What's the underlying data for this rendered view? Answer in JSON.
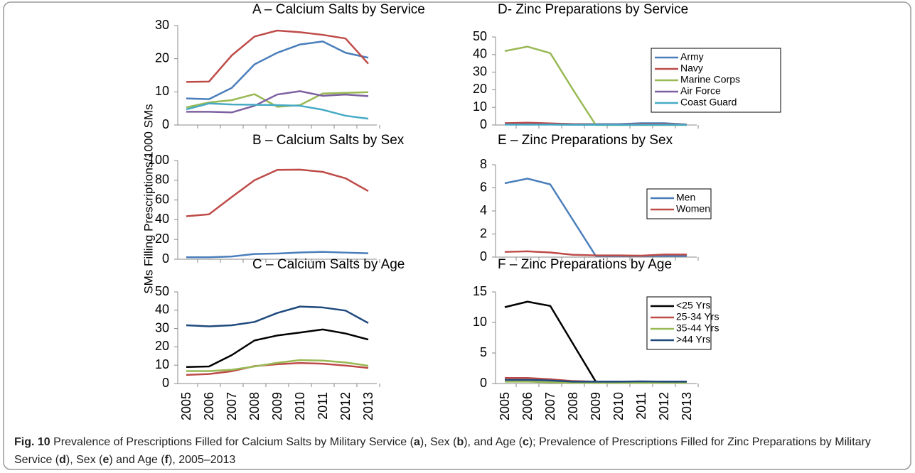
{
  "y_label": "SMs Filling Prescriptions/1000 SMs",
  "caption": [
    {
      "text": "Fig. 10",
      "bold": true
    },
    {
      "text": " Prevalence of Prescriptions Filled for Calcium Salts by Military Service (",
      "bold": false
    },
    {
      "text": "a",
      "bold": true
    },
    {
      "text": "), Sex (",
      "bold": false
    },
    {
      "text": "b",
      "bold": true
    },
    {
      "text": "), and Age (",
      "bold": false
    },
    {
      "text": "c",
      "bold": true
    },
    {
      "text": "); Prevalence of Prescriptions Filled for Zinc Preparations by Military Service (",
      "bold": false
    },
    {
      "text": "d",
      "bold": true
    },
    {
      "text": "), Sex (",
      "bold": false
    },
    {
      "text": "e",
      "bold": true
    },
    {
      "text": ") and Age (",
      "bold": false
    },
    {
      "text": "f",
      "bold": true
    },
    {
      "text": "), 2005–2013",
      "bold": false
    }
  ],
  "chart_data": [
    {
      "type": "line",
      "title": "A – Calcium Salts by Service",
      "ylim": [
        0,
        30
      ],
      "yticks": [
        0,
        10,
        20,
        30
      ],
      "series": [
        {
          "color": "#4a7ebb",
          "values": [
            8,
            7.8,
            11.2,
            18.3,
            21.8,
            24.3,
            25.2,
            21.8,
            20.3
          ]
        },
        {
          "color": "#be4b48",
          "values": [
            13,
            13.1,
            21,
            26.7,
            28.5,
            28,
            27.2,
            26.1,
            18.5
          ]
        },
        {
          "color": "#98b954",
          "values": [
            5.3,
            6.8,
            7.5,
            9.3,
            5.5,
            6,
            9.5,
            9.7,
            9.9
          ]
        },
        {
          "color": "#7d60a0",
          "values": [
            4,
            4,
            3.8,
            5.8,
            9.2,
            10.2,
            8.8,
            9.2,
            8.7
          ]
        },
        {
          "color": "#46aac5",
          "values": [
            4.7,
            6.5,
            6.2,
            6.1,
            6,
            5.8,
            4.6,
            2.8,
            1.9
          ]
        }
      ]
    },
    {
      "type": "line",
      "title": "B – Calcium Salts by Sex",
      "ylim": [
        0,
        100
      ],
      "yticks": [
        0,
        20,
        40,
        60,
        80,
        100
      ],
      "series": [
        {
          "color": "#4a7ebb",
          "values": [
            2,
            2,
            2.8,
            5.3,
            5.8,
            6.8,
            7.5,
            6.7,
            6
          ]
        },
        {
          "color": "#be4b48",
          "values": [
            43.5,
            45.5,
            63,
            80,
            90.5,
            90.7,
            88.5,
            82,
            69
          ]
        }
      ]
    },
    {
      "type": "line",
      "title": "C – Calcium Salts by Age",
      "ylim": [
        0,
        50
      ],
      "yticks": [
        0,
        10,
        20,
        30,
        40,
        50
      ],
      "categories": [
        "2005",
        "2006",
        "2007",
        "2008",
        "2009",
        "2010",
        "2011",
        "2012",
        "2013"
      ],
      "series": [
        {
          "color": "#000000",
          "values": [
            9,
            9.3,
            15.5,
            23.5,
            26.2,
            27.8,
            29.5,
            27.3,
            24
          ]
        },
        {
          "color": "#be4b48",
          "values": [
            4.7,
            5.2,
            6.7,
            9.5,
            10.5,
            11.2,
            10.8,
            9.8,
            8.5
          ]
        },
        {
          "color": "#98b954",
          "values": [
            6.8,
            6.8,
            7.5,
            9.3,
            11.3,
            12.8,
            12.5,
            11.5,
            9.7
          ]
        },
        {
          "color": "#1f497d",
          "values": [
            31.8,
            31.2,
            31.8,
            33.6,
            38.5,
            42,
            41.5,
            39.8,
            33
          ]
        }
      ]
    },
    {
      "type": "line",
      "title": "D- Zinc  Preparations by Service",
      "ylim": [
        0,
        50
      ],
      "yticks": [
        0,
        10,
        20,
        30,
        40,
        50
      ],
      "legend": "upper right",
      "series": [
        {
          "name": "Army",
          "color": "#4a7ebb",
          "values": [
            1,
            1,
            0.7,
            0.5,
            0.5,
            0.5,
            1,
            1,
            0.3
          ]
        },
        {
          "name": "Navy",
          "color": "#be4b48",
          "values": [
            1,
            1.3,
            0.9,
            0.5,
            0.3,
            0.3,
            0.5,
            0.5,
            0.3
          ]
        },
        {
          "name": "Marine Corps",
          "color": "#98b954",
          "values": [
            42,
            44.5,
            40.8,
            20,
            0,
            0,
            0,
            0,
            0
          ]
        },
        {
          "name": "Air Force",
          "color": "#7d60a0",
          "values": [
            0.3,
            0.3,
            0.3,
            0.2,
            0.2,
            0.2,
            0.2,
            0.2,
            0.2
          ]
        },
        {
          "name": "Coast Guard",
          "color": "#46aac5",
          "values": [
            0.2,
            0.2,
            0.2,
            0.1,
            0.1,
            0.1,
            0.1,
            0.1,
            0.1
          ]
        }
      ]
    },
    {
      "type": "line",
      "title": "E – Zinc Preparations by Sex",
      "ylim": [
        0,
        8
      ],
      "yticks": [
        0,
        2,
        4,
        6,
        8
      ],
      "legend": "right",
      "series": [
        {
          "name": "Men",
          "color": "#4a7ebb",
          "values": [
            6.4,
            6.8,
            6.3,
            3.2,
            0.1,
            0.1,
            0.1,
            0.1,
            0.1
          ]
        },
        {
          "name": "Women",
          "color": "#be4b48",
          "values": [
            0.45,
            0.5,
            0.4,
            0.2,
            0.15,
            0.15,
            0.12,
            0.22,
            0.22
          ]
        }
      ]
    },
    {
      "type": "line",
      "title": "F – Zinc Preparations by Age",
      "ylim": [
        0,
        15
      ],
      "yticks": [
        0,
        5,
        10,
        15
      ],
      "legend": "upper right",
      "categories": [
        "2005",
        "2006",
        "2007",
        "2008",
        "2009",
        "2010",
        "2011",
        "2012",
        "2013"
      ],
      "series": [
        {
          "name": "<25 Yrs",
          "color": "#000000",
          "values": [
            12.5,
            13.4,
            12.7,
            6.5,
            0.3,
            0.3,
            0.3,
            0.3,
            0.3
          ]
        },
        {
          "name": "25-34 Yrs",
          "color": "#be4b48",
          "values": [
            0.9,
            0.9,
            0.7,
            0.4,
            0.3,
            0.25,
            0.3,
            0.2,
            0.2
          ]
        },
        {
          "name": "35-44 Yrs",
          "color": "#98b954",
          "values": [
            0.3,
            0.3,
            0.2,
            0.1,
            0.1,
            0.1,
            0.1,
            0.1,
            0.1
          ]
        },
        {
          "name": ">44 Yrs",
          "color": "#1f497d",
          "values": [
            0.6,
            0.6,
            0.5,
            0.3,
            0.3,
            0.3,
            0.35,
            0.3,
            0.3
          ]
        }
      ]
    }
  ]
}
